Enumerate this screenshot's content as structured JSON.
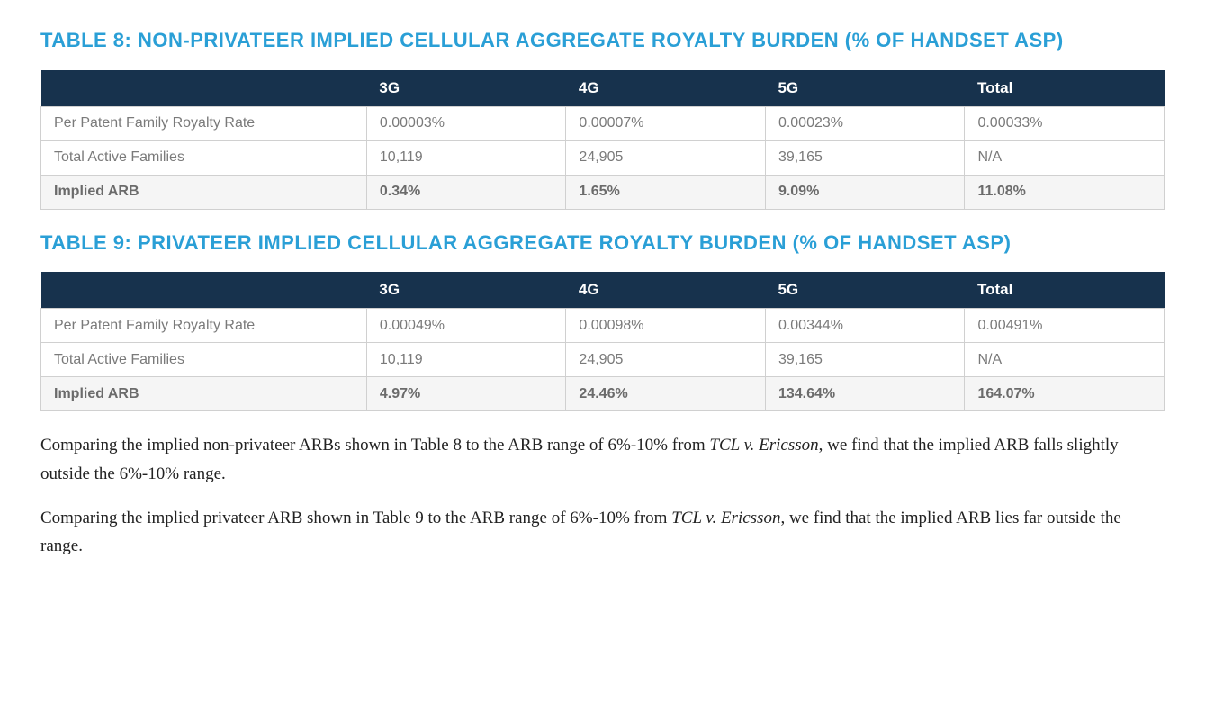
{
  "table8": {
    "title": "TABLE 8: NON-PRIVATEER IMPLIED CELLULAR AGGREGATE ROYALTY BURDEN (% OF HANDSET ASP)",
    "header_bg": "#17324d",
    "header_fg": "#ffffff",
    "title_color": "#2a9fd6",
    "border_color": "#d0d0d0",
    "cell_text_color": "#7a7a7a",
    "columns": [
      "",
      "3G",
      "4G",
      "5G",
      "Total"
    ],
    "rows": [
      {
        "label": "Per Patent Family Royalty Rate",
        "v": [
          "0.00003%",
          "0.00007%",
          "0.00023%",
          "0.00033%"
        ],
        "bold": false
      },
      {
        "label": "Total Active Families",
        "v": [
          "10,119",
          "24,905",
          "39,165",
          "N/A"
        ],
        "bold": false
      },
      {
        "label": "Implied ARB",
        "v": [
          "0.34%",
          "1.65%",
          "9.09%",
          "11.08%"
        ],
        "bold": true
      }
    ]
  },
  "table9": {
    "title": "TABLE 9: PRIVATEER IMPLIED CELLULAR AGGREGATE ROYALTY BURDEN (% OF HANDSET ASP)",
    "header_bg": "#17324d",
    "header_fg": "#ffffff",
    "title_color": "#2a9fd6",
    "border_color": "#d0d0d0",
    "cell_text_color": "#7a7a7a",
    "columns": [
      "",
      "3G",
      "4G",
      "5G",
      "Total"
    ],
    "rows": [
      {
        "label": "Per Patent Family Royalty Rate",
        "v": [
          "0.00049%",
          "0.00098%",
          "0.00344%",
          "0.00491%"
        ],
        "bold": false
      },
      {
        "label": "Total Active Families",
        "v": [
          "10,119",
          "24,905",
          "39,165",
          "N/A"
        ],
        "bold": false
      },
      {
        "label": "Implied ARB",
        "v": [
          "4.97%",
          "24.46%",
          "134.64%",
          "164.07%"
        ],
        "bold": true
      }
    ]
  },
  "para1": {
    "pre": "Comparing the implied non-privateer ARBs shown in Table 8 to the ARB range of 6%-10% from ",
    "em": "TCL v. Ericsson",
    "post": ", we find that the implied ARB falls slightly outside the 6%-10% range."
  },
  "para2": {
    "pre": "Comparing the implied privateer ARB shown in Table 9 to the ARB range of 6%-10% from ",
    "em": "TCL v. Ericsson",
    "post": ", we find that the implied ARB lies far outside the range."
  }
}
